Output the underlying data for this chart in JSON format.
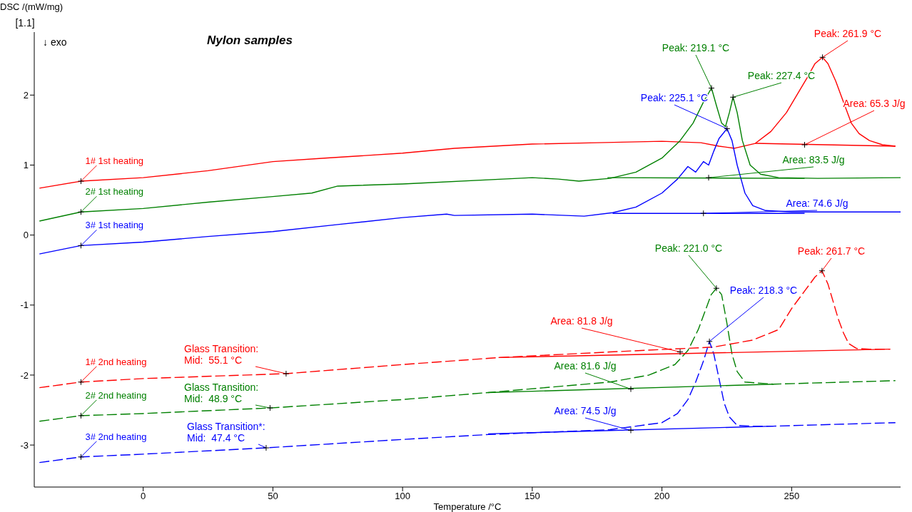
{
  "chart_data": {
    "type": "line",
    "title": "Nylon samples",
    "xlabel": "Temperature /°C",
    "ylabel": "DSC /(mW/mg)",
    "xlim": [
      -42,
      292
    ],
    "ylim": [
      -3.6,
      2.9
    ],
    "xticks": [
      0,
      50,
      100,
      150,
      200,
      250
    ],
    "yticks": [
      -3,
      -2,
      -1,
      0,
      1,
      2
    ],
    "grid": false,
    "series": [
      {
        "name": "1# 1st heating",
        "color": "#ff0000",
        "line_style": "solid",
        "x": [
          -40,
          -24,
          0,
          25,
          50,
          70,
          100,
          120,
          150,
          175,
          200,
          215,
          222,
          228,
          236,
          242,
          248,
          252,
          256,
          259,
          261.9,
          264,
          267,
          270,
          273,
          276,
          280,
          285,
          290
        ],
        "values": [
          0.67,
          0.77,
          0.82,
          0.92,
          1.05,
          1.1,
          1.17,
          1.24,
          1.3,
          1.32,
          1.34,
          1.32,
          1.27,
          1.24,
          1.31,
          1.48,
          1.75,
          2.0,
          2.25,
          2.45,
          2.54,
          2.45,
          2.2,
          1.9,
          1.6,
          1.45,
          1.35,
          1.29,
          1.27
        ]
      },
      {
        "name": "2# 1st heating",
        "color": "#008000",
        "line_style": "solid",
        "x": [
          -40,
          -24,
          0,
          25,
          50,
          65,
          75,
          100,
          150,
          160,
          168,
          180,
          190,
          200,
          207,
          212,
          216,
          219.1,
          221,
          223,
          224.5,
          226,
          227.4,
          229,
          231,
          234,
          238,
          245,
          260,
          292
        ],
        "values": [
          0.2,
          0.33,
          0.38,
          0.47,
          0.55,
          0.6,
          0.7,
          0.73,
          0.82,
          0.8,
          0.77,
          0.81,
          0.9,
          1.1,
          1.35,
          1.6,
          1.9,
          2.1,
          1.85,
          1.6,
          1.55,
          1.75,
          1.97,
          1.75,
          1.35,
          1.0,
          0.87,
          0.82,
          0.81,
          0.82
        ]
      },
      {
        "name": "3# 1st heating",
        "color": "#0000ff",
        "line_style": "solid",
        "x": [
          -40,
          -24,
          0,
          25,
          50,
          75,
          100,
          117,
          120,
          150,
          170,
          181,
          190,
          200,
          206,
          210,
          213,
          216,
          218,
          220,
          222,
          225.1,
          227,
          229,
          232,
          235,
          240,
          250,
          292
        ],
        "values": [
          -0.27,
          -0.15,
          -0.1,
          -0.02,
          0.05,
          0.15,
          0.25,
          0.3,
          0.28,
          0.3,
          0.27,
          0.32,
          0.4,
          0.6,
          0.8,
          0.98,
          0.9,
          1.05,
          1.0,
          1.2,
          1.38,
          1.52,
          1.35,
          1.0,
          0.6,
          0.42,
          0.35,
          0.33,
          0.33
        ]
      },
      {
        "name": "1# 2nd heating",
        "color": "#ff0000",
        "line_style": "dashed",
        "x": [
          -40,
          -24,
          0,
          55.1,
          100,
          137,
          180,
          220,
          235,
          245,
          250,
          255,
          259,
          261.7,
          264,
          266,
          268,
          270,
          272,
          275,
          280,
          288
        ],
        "values": [
          -2.18,
          -2.1,
          -2.05,
          -1.98,
          -1.85,
          -1.75,
          -1.67,
          -1.6,
          -1.5,
          -1.35,
          -1.05,
          -0.8,
          -0.6,
          -0.51,
          -0.7,
          -0.95,
          -1.2,
          -1.4,
          -1.55,
          -1.62,
          -1.63,
          -1.63
        ]
      },
      {
        "name": "2# 2nd heating",
        "color": "#008000",
        "line_style": "dashed",
        "x": [
          -40,
          -24,
          0,
          48.9,
          100,
          133,
          180,
          195,
          205,
          210,
          214,
          217,
          219,
          221,
          223,
          225,
          227,
          229,
          232,
          243,
          290
        ],
        "values": [
          -2.66,
          -2.58,
          -2.55,
          -2.47,
          -2.35,
          -2.25,
          -2.1,
          -2.0,
          -1.85,
          -1.65,
          -1.35,
          -1.05,
          -0.85,
          -0.76,
          -0.85,
          -1.25,
          -1.7,
          -1.95,
          -2.1,
          -2.13,
          -2.08
        ]
      },
      {
        "name": "3# 2nd heating",
        "color": "#0000ff",
        "line_style": "dashed",
        "x": [
          -40,
          -24,
          0,
          47.4,
          100,
          133,
          180,
          200,
          206,
          210,
          213,
          216,
          218.3,
          220,
          222,
          224,
          226,
          229,
          235,
          243,
          290
        ],
        "values": [
          -3.25,
          -3.17,
          -3.13,
          -3.04,
          -2.92,
          -2.85,
          -2.78,
          -2.68,
          -2.55,
          -2.35,
          -2.1,
          -1.8,
          -1.52,
          -1.7,
          -2.05,
          -2.4,
          -2.6,
          -2.72,
          -2.73,
          -2.73,
          -2.68
        ]
      },
      {
        "color": "#ff0000",
        "line_style": "solid",
        "x": [
          236,
          290
        ],
        "values": [
          1.31,
          1.27
        ]
      },
      {
        "color": "#008000",
        "line_style": "solid",
        "x": [
          179,
          255
        ],
        "values": [
          0.82,
          0.81
        ]
      },
      {
        "color": "#0000ff",
        "line_style": "solid",
        "x": [
          181,
          255
        ],
        "values": [
          0.31,
          0.31
        ]
      },
      {
        "color": "#ff0000",
        "line_style": "solid",
        "x": [
          137,
          288
        ],
        "values": [
          -1.75,
          -1.63
        ]
      },
      {
        "color": "#008000",
        "line_style": "solid",
        "x": [
          133,
          243
        ],
        "values": [
          -2.25,
          -2.13
        ]
      },
      {
        "color": "#0000ff",
        "line_style": "solid",
        "x": [
          133,
          243
        ],
        "values": [
          -2.84,
          -2.73
        ]
      }
    ],
    "annotations": [
      "[1.1]",
      "↓ exo",
      {
        "text": "Peak: 261.9 °C",
        "x": 261.9,
        "y": 2.54
      },
      {
        "text": "Area: 65.3 J/g",
        "x": 255,
        "y": 1.29
      },
      {
        "text": "Peak: 219.1 °C",
        "x": 219.1,
        "y": 2.1
      },
      {
        "text": "Peak: 227.4 °C",
        "x": 227.4,
        "y": 1.97
      },
      {
        "text": "Peak: 225.1 °C",
        "x": 225.1,
        "y": 1.52
      },
      {
        "text": "Area: 83.5 J/g",
        "x": 218,
        "y": 0.82
      },
      {
        "text": "Area: 74.6 J/g",
        "x": 216,
        "y": 0.31
      },
      {
        "text": "Peak: 221.0 °C",
        "x": 221.0,
        "y": -0.76
      },
      {
        "text": "Peak: 261.7 °C",
        "x": 261.7,
        "y": -0.51
      },
      {
        "text": "Peak: 218.3 °C",
        "x": 218.3,
        "y": -1.52
      },
      {
        "text": "Area: 81.8 J/g",
        "x": 207,
        "y": -1.67
      },
      {
        "text": "Area: 81.6 J/g",
        "x": 188,
        "y": -2.2
      },
      {
        "text": "Area: 74.5 J/g",
        "x": 188,
        "y": -2.79
      },
      {
        "text": "Glass Transition:\nMid:  55.1 °C",
        "x": 55.1,
        "y": -1.98
      },
      {
        "text": "Glass Transition:\nMid:  48.9 °C",
        "x": 48.9,
        "y": -2.47
      },
      {
        "text": "Glass Transition*:\nMid:  47.4 °C",
        "x": 47.4,
        "y": -3.04
      }
    ]
  }
}
